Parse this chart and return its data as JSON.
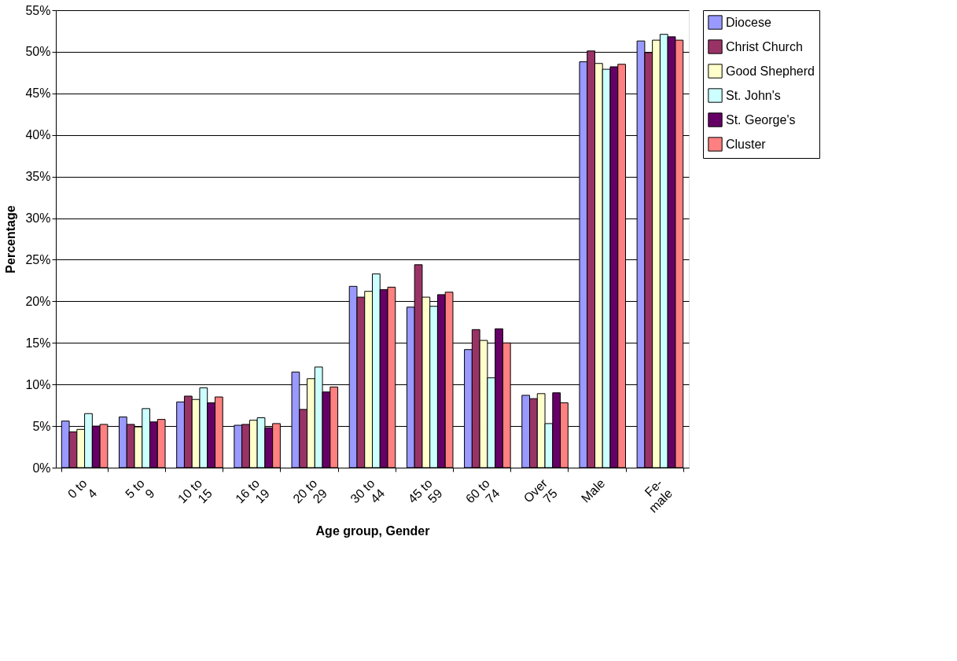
{
  "chart_data": {
    "type": "bar",
    "xlabel": "Age group, Gender",
    "ylabel": "Percentage",
    "categories": [
      "0 to\n4",
      "5 to\n9",
      "10 to\n15",
      "16 to\n19",
      "20 to\n29",
      "30 to\n44",
      "45 to\n59",
      "60 to\n74",
      "Over\n75",
      "Male",
      "Fe-\nmale"
    ],
    "series": [
      {
        "name": "Diocese",
        "color": "#9999ff",
        "values": [
          5.6,
          6.1,
          7.9,
          5.1,
          11.5,
          21.8,
          19.3,
          14.2,
          8.7,
          48.8,
          51.3
        ]
      },
      {
        "name": "Christ Church",
        "color": "#993366",
        "values": [
          4.3,
          5.2,
          8.6,
          5.2,
          7.0,
          20.5,
          24.4,
          16.6,
          8.3,
          50.1,
          49.9
        ]
      },
      {
        "name": "Good Shepherd",
        "color": "#ffffcc",
        "values": [
          4.6,
          4.9,
          8.2,
          5.7,
          10.7,
          21.2,
          20.5,
          15.3,
          8.9,
          48.6,
          51.4
        ]
      },
      {
        "name": "St. John's",
        "color": "#ccffff",
        "values": [
          6.5,
          7.1,
          9.6,
          6.0,
          12.1,
          23.3,
          19.4,
          10.8,
          5.3,
          47.9,
          52.1
        ]
      },
      {
        "name": "St. George's",
        "color": "#660066",
        "values": [
          5.0,
          5.5,
          7.8,
          4.8,
          9.1,
          21.4,
          20.8,
          16.7,
          9.0,
          48.2,
          51.8
        ]
      },
      {
        "name": "Cluster",
        "color": "#ff8080",
        "values": [
          5.2,
          5.8,
          8.5,
          5.3,
          9.7,
          21.7,
          21.1,
          15.0,
          7.8,
          48.5,
          51.4
        ]
      }
    ],
    "ylim": [
      0,
      55
    ],
    "yticks": [
      {
        "value": 0,
        "label": "0%"
      },
      {
        "value": 5,
        "label": "5%"
      },
      {
        "value": 10,
        "label": "10%"
      },
      {
        "value": 15,
        "label": "15%"
      },
      {
        "value": 20,
        "label": "20%"
      },
      {
        "value": 25,
        "label": "25%"
      },
      {
        "value": 30,
        "label": "30%"
      },
      {
        "value": 35,
        "label": "35%"
      },
      {
        "value": 40,
        "label": "40%"
      },
      {
        "value": 45,
        "label": "45%"
      },
      {
        "value": 50,
        "label": "50%"
      },
      {
        "value": 55,
        "label": "55%"
      }
    ],
    "grid": "y",
    "legend": "right"
  }
}
